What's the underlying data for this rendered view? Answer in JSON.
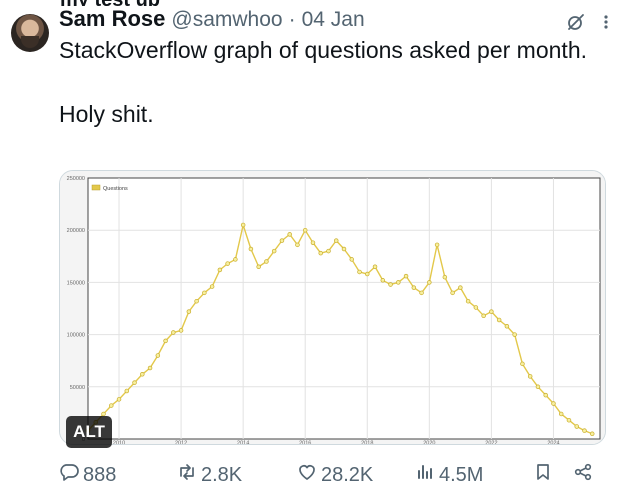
{
  "tweet": {
    "author_name": "Sam Rose",
    "handle": "@samwhoo",
    "separator": "·",
    "date": "04 Jan",
    "text": "StackOverflow graph of questions asked per month.\n\nHoly shit.",
    "alt_label": "ALT"
  },
  "icons": {
    "grok": "grok-icon",
    "more": "more-icon",
    "reply": "reply-icon",
    "retweet": "retweet-icon",
    "like": "heart-icon",
    "views": "views-icon",
    "bookmark": "bookmark-icon",
    "share": "share-icon"
  },
  "actions": {
    "replies": "888",
    "retweets": "2.8K",
    "likes": "28.2K",
    "views": "4.5M"
  },
  "colors": {
    "series": "#e3c84a",
    "muted": "#536471"
  },
  "chart_data": {
    "type": "line",
    "legend": [
      "Questions"
    ],
    "legend_position": "top-left",
    "ylim": [
      0,
      250000
    ],
    "yticks": [
      "0",
      "50000",
      "100000",
      "150000",
      "200000",
      "250000"
    ],
    "xticks": [
      "2010",
      "2012",
      "2014",
      "2016",
      "2018",
      "2020",
      "2022",
      "2024"
    ],
    "grid": true,
    "series": [
      {
        "name": "Questions",
        "points": [
          [
            2009.0,
            8000
          ],
          [
            2009.25,
            16000
          ],
          [
            2009.5,
            24000
          ],
          [
            2009.75,
            32000
          ],
          [
            2010.0,
            38000
          ],
          [
            2010.25,
            46000
          ],
          [
            2010.5,
            54000
          ],
          [
            2010.75,
            62000
          ],
          [
            2011.0,
            68000
          ],
          [
            2011.25,
            80000
          ],
          [
            2011.5,
            94000
          ],
          [
            2011.75,
            102000
          ],
          [
            2012.0,
            104000
          ],
          [
            2012.25,
            122000
          ],
          [
            2012.5,
            132000
          ],
          [
            2012.75,
            140000
          ],
          [
            2013.0,
            146000
          ],
          [
            2013.25,
            162000
          ],
          [
            2013.5,
            168000
          ],
          [
            2013.75,
            172000
          ],
          [
            2014.0,
            205000
          ],
          [
            2014.25,
            182000
          ],
          [
            2014.5,
            165000
          ],
          [
            2014.75,
            170000
          ],
          [
            2015.0,
            180000
          ],
          [
            2015.25,
            190000
          ],
          [
            2015.5,
            196000
          ],
          [
            2015.75,
            186000
          ],
          [
            2016.0,
            200000
          ],
          [
            2016.25,
            188000
          ],
          [
            2016.5,
            178000
          ],
          [
            2016.75,
            180000
          ],
          [
            2017.0,
            190000
          ],
          [
            2017.25,
            182000
          ],
          [
            2017.5,
            172000
          ],
          [
            2017.75,
            160000
          ],
          [
            2018.0,
            158000
          ],
          [
            2018.25,
            165000
          ],
          [
            2018.5,
            152000
          ],
          [
            2018.75,
            148000
          ],
          [
            2019.0,
            150000
          ],
          [
            2019.25,
            156000
          ],
          [
            2019.5,
            145000
          ],
          [
            2019.75,
            140000
          ],
          [
            2020.0,
            150000
          ],
          [
            2020.25,
            186000
          ],
          [
            2020.5,
            155000
          ],
          [
            2020.75,
            140000
          ],
          [
            2021.0,
            145000
          ],
          [
            2021.25,
            132000
          ],
          [
            2021.5,
            126000
          ],
          [
            2021.75,
            118000
          ],
          [
            2022.0,
            122000
          ],
          [
            2022.25,
            114000
          ],
          [
            2022.5,
            108000
          ],
          [
            2022.75,
            100000
          ],
          [
            2023.0,
            72000
          ],
          [
            2023.25,
            60000
          ],
          [
            2023.5,
            50000
          ],
          [
            2023.75,
            42000
          ],
          [
            2024.0,
            34000
          ],
          [
            2024.25,
            24000
          ],
          [
            2024.5,
            18000
          ],
          [
            2024.75,
            12000
          ],
          [
            2025.0,
            8000
          ],
          [
            2025.25,
            5000
          ]
        ]
      }
    ]
  }
}
